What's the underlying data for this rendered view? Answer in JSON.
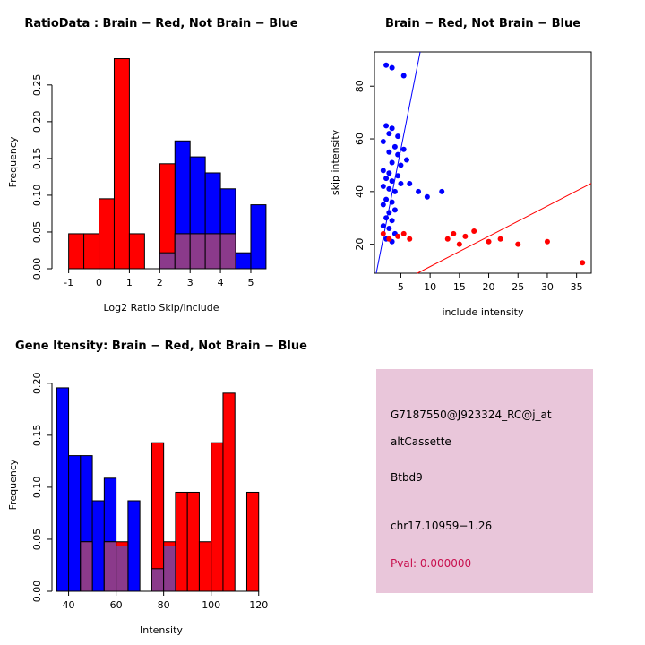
{
  "colors": {
    "red": "#FF0000",
    "blue": "#0000FF",
    "overlap": "#8B3A8B",
    "axis": "#000000"
  },
  "chart_data": [
    {
      "id": "ratio_histogram",
      "type": "bar",
      "title": "RatioData : Brain − Red, Not Brain − Blue",
      "xlabel": "Log2 Ratio Skip/Include",
      "ylabel": "Frequency",
      "xlim": [
        -1.55,
        5.65
      ],
      "ylim": [
        0,
        0.29
      ],
      "xticks": [
        -1,
        0,
        1,
        2,
        3,
        4,
        5
      ],
      "yticks": [
        0,
        0.05,
        0.1,
        0.15,
        0.2,
        0.25
      ],
      "ytick_decimals": 2,
      "bin_width": 0.5,
      "grid": false,
      "legend": "none",
      "series": [
        {
          "name": "Not Brain (blue)",
          "color_key": "blue",
          "bins": [
            [
              2,
              0.0217
            ],
            [
              2.5,
              0.1739
            ],
            [
              3,
              0.1522
            ],
            [
              3.5,
              0.1304
            ],
            [
              4,
              0.1087
            ],
            [
              4.5,
              0.0217
            ],
            [
              5,
              0.087
            ]
          ]
        },
        {
          "name": "Brain (red)",
          "color_key": "red",
          "bins": [
            [
              -1,
              0.0476
            ],
            [
              -0.5,
              0.0476
            ],
            [
              0,
              0.0952
            ],
            [
              0.5,
              0.2857
            ],
            [
              1,
              0.0476
            ],
            [
              2,
              0.1428
            ],
            [
              2.5,
              0.0476
            ],
            [
              3,
              0.0476
            ],
            [
              3.5,
              0.0476
            ],
            [
              4,
              0.0476
            ]
          ]
        }
      ]
    },
    {
      "id": "intensity_scatter",
      "type": "scatter",
      "title": "Brain − Red, Not Brain − Blue",
      "xlabel": "include intensity",
      "ylabel": "skip intensity",
      "xlim": [
        0.5,
        37.5
      ],
      "ylim": [
        9,
        93
      ],
      "xticks": [
        5,
        10,
        15,
        20,
        25,
        30,
        35
      ],
      "yticks": [
        20,
        40,
        60,
        80
      ],
      "grid": false,
      "legend": "none",
      "series": [
        {
          "name": "Not Brain (blue)",
          "color_key": "blue",
          "points": [
            [
              2.5,
              88
            ],
            [
              3.5,
              87
            ],
            [
              5.5,
              84
            ],
            [
              2.5,
              65
            ],
            [
              3.5,
              64
            ],
            [
              3,
              62
            ],
            [
              4.5,
              61
            ],
            [
              2,
              59
            ],
            [
              4,
              57
            ],
            [
              5.5,
              56
            ],
            [
              3,
              55
            ],
            [
              4.5,
              54
            ],
            [
              6,
              52
            ],
            [
              3.5,
              51
            ],
            [
              5,
              50
            ],
            [
              2,
              48
            ],
            [
              3,
              47
            ],
            [
              4.5,
              46
            ],
            [
              2.5,
              45
            ],
            [
              3.5,
              44
            ],
            [
              5,
              43
            ],
            [
              6.5,
              43
            ],
            [
              2,
              42
            ],
            [
              3,
              41
            ],
            [
              4,
              40
            ],
            [
              8,
              40
            ],
            [
              12,
              40
            ],
            [
              9.5,
              38
            ],
            [
              2.5,
              37
            ],
            [
              3.5,
              36
            ],
            [
              2,
              35
            ],
            [
              4,
              33
            ],
            [
              3,
              32
            ],
            [
              2.5,
              30
            ],
            [
              3.5,
              29
            ],
            [
              2,
              27
            ],
            [
              3,
              26
            ],
            [
              4,
              24
            ],
            [
              2.5,
              22
            ],
            [
              3.5,
              21
            ]
          ]
        },
        {
          "name": "Brain (red)",
          "color_key": "red",
          "points": [
            [
              2,
              24
            ],
            [
              3,
              22
            ],
            [
              4.5,
              23
            ],
            [
              5.5,
              24
            ],
            [
              6.5,
              22
            ],
            [
              13,
              22
            ],
            [
              14,
              24
            ],
            [
              15,
              20
            ],
            [
              16,
              23
            ],
            [
              17.5,
              25
            ],
            [
              20,
              21
            ],
            [
              22,
              22
            ],
            [
              25,
              20
            ],
            [
              30,
              21
            ],
            [
              36,
              13
            ]
          ]
        }
      ],
      "lines": [
        {
          "name": "blue-fit-line",
          "color_key": "blue",
          "slope": 11.2,
          "intercept": 0
        },
        {
          "name": "red-fit-line",
          "color_key": "red",
          "slope": 1.15,
          "intercept": 0
        }
      ]
    },
    {
      "id": "gene_intensity_histogram",
      "type": "bar",
      "title": "Gene Itensity: Brain − Red, Not Brain − Blue",
      "xlabel": "Intensity",
      "ylabel": "Frequency",
      "xlim": [
        33,
        125
      ],
      "ylim": [
        0,
        0.205
      ],
      "xticks": [
        40,
        60,
        80,
        100,
        120
      ],
      "yticks": [
        0,
        0.05,
        0.1,
        0.15,
        0.2
      ],
      "ytick_decimals": 2,
      "bin_width": 5,
      "grid": false,
      "legend": "none",
      "series": [
        {
          "name": "Not Brain (blue)",
          "color_key": "blue",
          "bins": [
            [
              35,
              0.1956
            ],
            [
              40,
              0.1304
            ],
            [
              45,
              0.1304
            ],
            [
              50,
              0.087
            ],
            [
              55,
              0.1087
            ],
            [
              60,
              0.0435
            ],
            [
              65,
              0.087
            ],
            [
              75,
              0.0217
            ],
            [
              80,
              0.0435
            ]
          ]
        },
        {
          "name": "Brain (red)",
          "color_key": "red",
          "bins": [
            [
              45,
              0.0476
            ],
            [
              55,
              0.0476
            ],
            [
              60,
              0.0476
            ],
            [
              75,
              0.1428
            ],
            [
              80,
              0.0476
            ],
            [
              85,
              0.0952
            ],
            [
              90,
              0.0952
            ],
            [
              95,
              0.0476
            ],
            [
              100,
              0.1428
            ],
            [
              105,
              0.1905
            ],
            [
              115,
              0.0952
            ]
          ]
        }
      ]
    }
  ],
  "info_box": {
    "background": "#E9C6DA",
    "pval_color": "#C8104E",
    "lines": [
      {
        "text": "G7187550@J923324_RC@j_at"
      },
      {
        "text": "altCassette"
      },
      {
        "text": "Btbd9"
      },
      {
        "text": "chr17.10959−1.26"
      },
      {
        "text": "Pval: 0.000000"
      }
    ]
  }
}
